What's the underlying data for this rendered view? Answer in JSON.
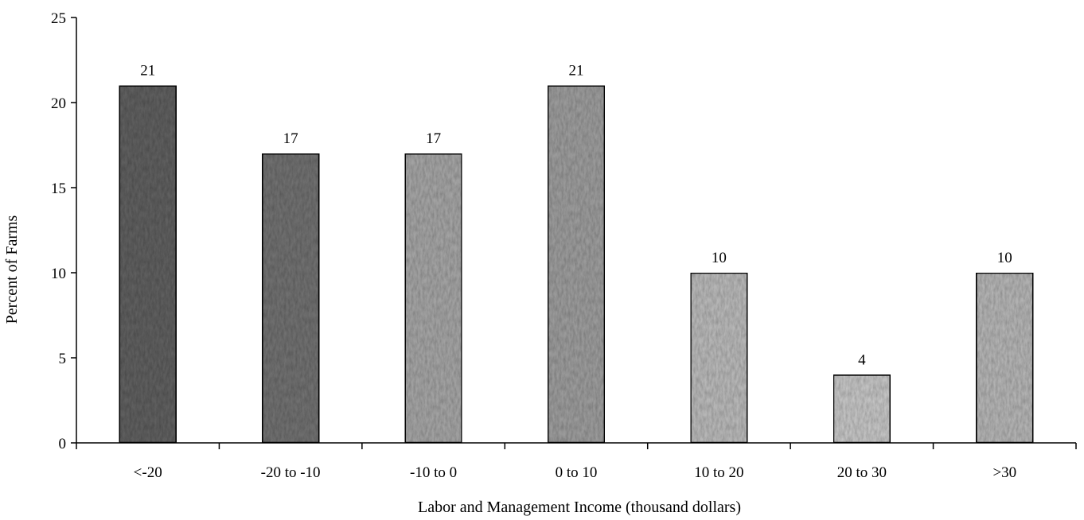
{
  "chart_data": {
    "type": "bar",
    "categories": [
      "<-20",
      "-20 to -10",
      "-10 to 0",
      "0 to 10",
      "10 to 20",
      "20 to 30",
      ">30"
    ],
    "values": [
      21,
      17,
      17,
      21,
      10,
      4,
      10
    ],
    "data_labels": [
      "21",
      "17",
      "17",
      "21",
      "10",
      "4",
      "10"
    ],
    "title": "",
    "xlabel": "Labor and Management Income (thousand dollars)",
    "ylabel": "Percent of Farms",
    "ylim": [
      0,
      25
    ],
    "yticks": [
      0,
      5,
      10,
      15,
      20,
      25
    ],
    "ytick_labels": [
      "0",
      "5",
      "10",
      "15",
      "20",
      "25"
    ],
    "grid": false,
    "legend": "none",
    "bar_colors": [
      "#5e5e5e",
      "#6f6f6f",
      "#a2a2a2",
      "#9a9a9a",
      "#b6b6b6",
      "#c2c2c2",
      "#b2b2b2"
    ],
    "bar_texture": "mottled"
  }
}
